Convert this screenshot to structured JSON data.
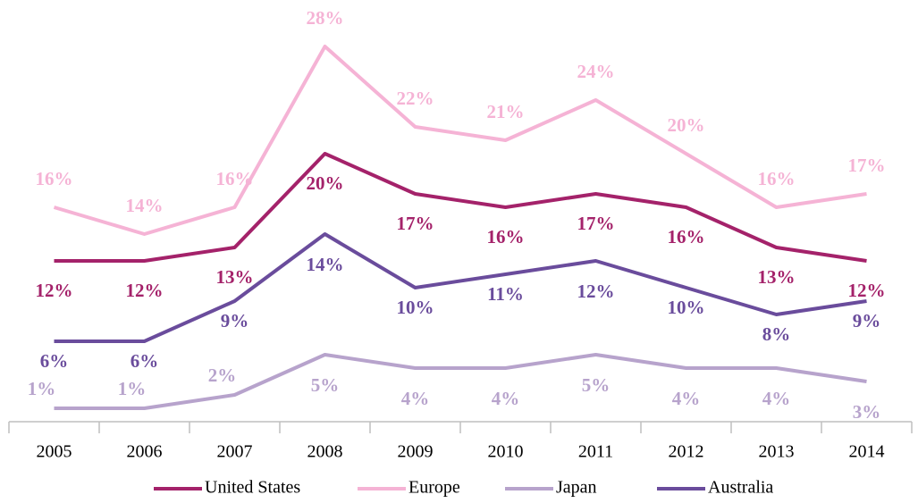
{
  "chart_data": {
    "type": "line",
    "categories": [
      "2005",
      "2006",
      "2007",
      "2008",
      "2009",
      "2010",
      "2011",
      "2012",
      "2013",
      "2014"
    ],
    "series": [
      {
        "name": "United States",
        "color": "#a4226a",
        "values": [
          12,
          12,
          13,
          20,
          17,
          16,
          17,
          16,
          13,
          12
        ],
        "value_labels": [
          "12%",
          "12%",
          "13%",
          "20%",
          "17%",
          "16%",
          "17%",
          "16%",
          "13%",
          "12%"
        ]
      },
      {
        "name": "Europe",
        "color": "#f5b3d5",
        "values": [
          16,
          14,
          16,
          28,
          22,
          21,
          24,
          20,
          16,
          17
        ],
        "value_labels": [
          "16%",
          "14%",
          "16%",
          "28%",
          "22%",
          "21%",
          "24%",
          "20%",
          "16%",
          "17%"
        ]
      },
      {
        "name": "Japan",
        "color": "#b7a3cc",
        "values": [
          1,
          1,
          2,
          5,
          4,
          4,
          5,
          4,
          4,
          3
        ],
        "value_labels": [
          "1%",
          "1%",
          "2%",
          "5%",
          "4%",
          "4%",
          "5%",
          "4%",
          "4%",
          "3%"
        ]
      },
      {
        "name": "Australia",
        "color": "#6a4c9c",
        "values": [
          6,
          6,
          9,
          14,
          10,
          11,
          12,
          10,
          8,
          9
        ],
        "value_labels": [
          "6%",
          "6%",
          "9%",
          "14%",
          "10%",
          "11%",
          "12%",
          "10%",
          "8%",
          "9%"
        ]
      }
    ],
    "legend": "bottom"
  }
}
